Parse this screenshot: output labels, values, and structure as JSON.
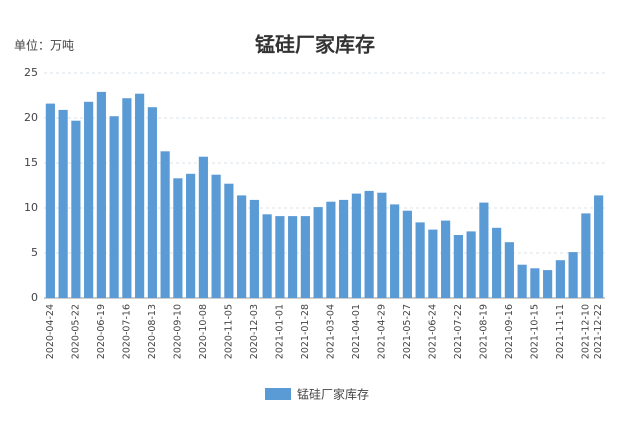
{
  "chart_data": {
    "type": "bar",
    "title": "锰硅厂家库存",
    "unit_label": "单位：万吨",
    "categories": [
      "2020-04-24",
      null,
      "2020-05-22",
      null,
      "2020-06-19",
      null,
      "2020-07-16",
      null,
      "2020-08-13",
      null,
      "2020-09-10",
      null,
      "2020-10-08",
      null,
      "2020-11-05",
      null,
      "2020-12-03",
      null,
      "2021-01-01",
      null,
      "2021-01-28",
      null,
      "2021-03-04",
      null,
      "2021-04-01",
      null,
      "2021-04-29",
      null,
      "2021-05-27",
      null,
      "2021-06-24",
      null,
      "2021-07-22",
      null,
      "2021-08-19",
      null,
      "2021-09-16",
      null,
      "2021-10-15",
      null,
      "2021-11-11",
      null,
      "2021-12-10",
      "2021-12-22"
    ],
    "series": [
      {
        "name": "锰硅厂家库存",
        "color": "#5b9bd5",
        "values": [
          21.6,
          20.9,
          19.7,
          21.8,
          22.9,
          20.2,
          22.2,
          22.7,
          21.2,
          16.3,
          13.3,
          13.8,
          15.7,
          13.7,
          12.7,
          11.4,
          10.9,
          9.3,
          9.1,
          9.1,
          9.1,
          10.1,
          10.7,
          10.9,
          11.6,
          11.9,
          11.7,
          10.4,
          9.7,
          8.4,
          7.6,
          8.6,
          7.0,
          7.4,
          10.6,
          7.8,
          6.2,
          3.7,
          3.3,
          3.1,
          4.2,
          5.1,
          9.4,
          11.4
        ]
      }
    ],
    "ylim": [
      0,
      25
    ],
    "yticks": [
      0,
      5,
      10,
      15,
      20,
      25
    ],
    "grid": true
  }
}
